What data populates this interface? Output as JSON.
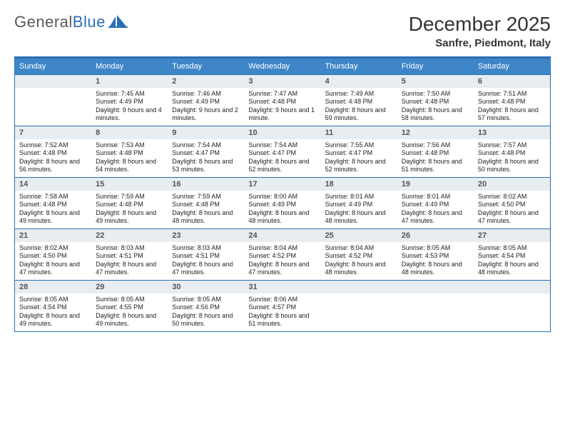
{
  "logo": {
    "text1": "General",
    "text2": "Blue"
  },
  "title": "December 2025",
  "location": "Sanfre, Piedmont, Italy",
  "colors": {
    "headerBar": "#2a6fb5",
    "dowBg": "#3e86c8",
    "dowText": "#ffffff",
    "dayNumBg": "#e7edf0",
    "dayNumText": "#555555",
    "bodyText": "#222222"
  },
  "daysOfWeek": [
    "Sunday",
    "Monday",
    "Tuesday",
    "Wednesday",
    "Thursday",
    "Friday",
    "Saturday"
  ],
  "weeks": [
    [
      {
        "n": "",
        "sunrise": "",
        "sunset": "",
        "daylight": ""
      },
      {
        "n": "1",
        "sunrise": "Sunrise: 7:45 AM",
        "sunset": "Sunset: 4:49 PM",
        "daylight": "Daylight: 9 hours and 4 minutes."
      },
      {
        "n": "2",
        "sunrise": "Sunrise: 7:46 AM",
        "sunset": "Sunset: 4:49 PM",
        "daylight": "Daylight: 9 hours and 2 minutes."
      },
      {
        "n": "3",
        "sunrise": "Sunrise: 7:47 AM",
        "sunset": "Sunset: 4:48 PM",
        "daylight": "Daylight: 9 hours and 1 minute."
      },
      {
        "n": "4",
        "sunrise": "Sunrise: 7:49 AM",
        "sunset": "Sunset: 4:48 PM",
        "daylight": "Daylight: 8 hours and 59 minutes."
      },
      {
        "n": "5",
        "sunrise": "Sunrise: 7:50 AM",
        "sunset": "Sunset: 4:48 PM",
        "daylight": "Daylight: 8 hours and 58 minutes."
      },
      {
        "n": "6",
        "sunrise": "Sunrise: 7:51 AM",
        "sunset": "Sunset: 4:48 PM",
        "daylight": "Daylight: 8 hours and 57 minutes."
      }
    ],
    [
      {
        "n": "7",
        "sunrise": "Sunrise: 7:52 AM",
        "sunset": "Sunset: 4:48 PM",
        "daylight": "Daylight: 8 hours and 56 minutes."
      },
      {
        "n": "8",
        "sunrise": "Sunrise: 7:53 AM",
        "sunset": "Sunset: 4:48 PM",
        "daylight": "Daylight: 8 hours and 54 minutes."
      },
      {
        "n": "9",
        "sunrise": "Sunrise: 7:54 AM",
        "sunset": "Sunset: 4:47 PM",
        "daylight": "Daylight: 8 hours and 53 minutes."
      },
      {
        "n": "10",
        "sunrise": "Sunrise: 7:54 AM",
        "sunset": "Sunset: 4:47 PM",
        "daylight": "Daylight: 8 hours and 52 minutes."
      },
      {
        "n": "11",
        "sunrise": "Sunrise: 7:55 AM",
        "sunset": "Sunset: 4:47 PM",
        "daylight": "Daylight: 8 hours and 52 minutes."
      },
      {
        "n": "12",
        "sunrise": "Sunrise: 7:56 AM",
        "sunset": "Sunset: 4:48 PM",
        "daylight": "Daylight: 8 hours and 51 minutes."
      },
      {
        "n": "13",
        "sunrise": "Sunrise: 7:57 AM",
        "sunset": "Sunset: 4:48 PM",
        "daylight": "Daylight: 8 hours and 50 minutes."
      }
    ],
    [
      {
        "n": "14",
        "sunrise": "Sunrise: 7:58 AM",
        "sunset": "Sunset: 4:48 PM",
        "daylight": "Daylight: 8 hours and 49 minutes."
      },
      {
        "n": "15",
        "sunrise": "Sunrise: 7:59 AM",
        "sunset": "Sunset: 4:48 PM",
        "daylight": "Daylight: 8 hours and 49 minutes."
      },
      {
        "n": "16",
        "sunrise": "Sunrise: 7:59 AM",
        "sunset": "Sunset: 4:48 PM",
        "daylight": "Daylight: 8 hours and 48 minutes."
      },
      {
        "n": "17",
        "sunrise": "Sunrise: 8:00 AM",
        "sunset": "Sunset: 4:49 PM",
        "daylight": "Daylight: 8 hours and 48 minutes."
      },
      {
        "n": "18",
        "sunrise": "Sunrise: 8:01 AM",
        "sunset": "Sunset: 4:49 PM",
        "daylight": "Daylight: 8 hours and 48 minutes."
      },
      {
        "n": "19",
        "sunrise": "Sunrise: 8:01 AM",
        "sunset": "Sunset: 4:49 PM",
        "daylight": "Daylight: 8 hours and 47 minutes."
      },
      {
        "n": "20",
        "sunrise": "Sunrise: 8:02 AM",
        "sunset": "Sunset: 4:50 PM",
        "daylight": "Daylight: 8 hours and 47 minutes."
      }
    ],
    [
      {
        "n": "21",
        "sunrise": "Sunrise: 8:02 AM",
        "sunset": "Sunset: 4:50 PM",
        "daylight": "Daylight: 8 hours and 47 minutes."
      },
      {
        "n": "22",
        "sunrise": "Sunrise: 8:03 AM",
        "sunset": "Sunset: 4:51 PM",
        "daylight": "Daylight: 8 hours and 47 minutes."
      },
      {
        "n": "23",
        "sunrise": "Sunrise: 8:03 AM",
        "sunset": "Sunset: 4:51 PM",
        "daylight": "Daylight: 8 hours and 47 minutes."
      },
      {
        "n": "24",
        "sunrise": "Sunrise: 8:04 AM",
        "sunset": "Sunset: 4:52 PM",
        "daylight": "Daylight: 8 hours and 47 minutes."
      },
      {
        "n": "25",
        "sunrise": "Sunrise: 8:04 AM",
        "sunset": "Sunset: 4:52 PM",
        "daylight": "Daylight: 8 hours and 48 minutes."
      },
      {
        "n": "26",
        "sunrise": "Sunrise: 8:05 AM",
        "sunset": "Sunset: 4:53 PM",
        "daylight": "Daylight: 8 hours and 48 minutes."
      },
      {
        "n": "27",
        "sunrise": "Sunrise: 8:05 AM",
        "sunset": "Sunset: 4:54 PM",
        "daylight": "Daylight: 8 hours and 48 minutes."
      }
    ],
    [
      {
        "n": "28",
        "sunrise": "Sunrise: 8:05 AM",
        "sunset": "Sunset: 4:54 PM",
        "daylight": "Daylight: 8 hours and 49 minutes."
      },
      {
        "n": "29",
        "sunrise": "Sunrise: 8:05 AM",
        "sunset": "Sunset: 4:55 PM",
        "daylight": "Daylight: 8 hours and 49 minutes."
      },
      {
        "n": "30",
        "sunrise": "Sunrise: 8:05 AM",
        "sunset": "Sunset: 4:56 PM",
        "daylight": "Daylight: 8 hours and 50 minutes."
      },
      {
        "n": "31",
        "sunrise": "Sunrise: 8:06 AM",
        "sunset": "Sunset: 4:57 PM",
        "daylight": "Daylight: 8 hours and 51 minutes."
      },
      {
        "n": "",
        "sunrise": "",
        "sunset": "",
        "daylight": ""
      },
      {
        "n": "",
        "sunrise": "",
        "sunset": "",
        "daylight": ""
      },
      {
        "n": "",
        "sunrise": "",
        "sunset": "",
        "daylight": ""
      }
    ]
  ]
}
